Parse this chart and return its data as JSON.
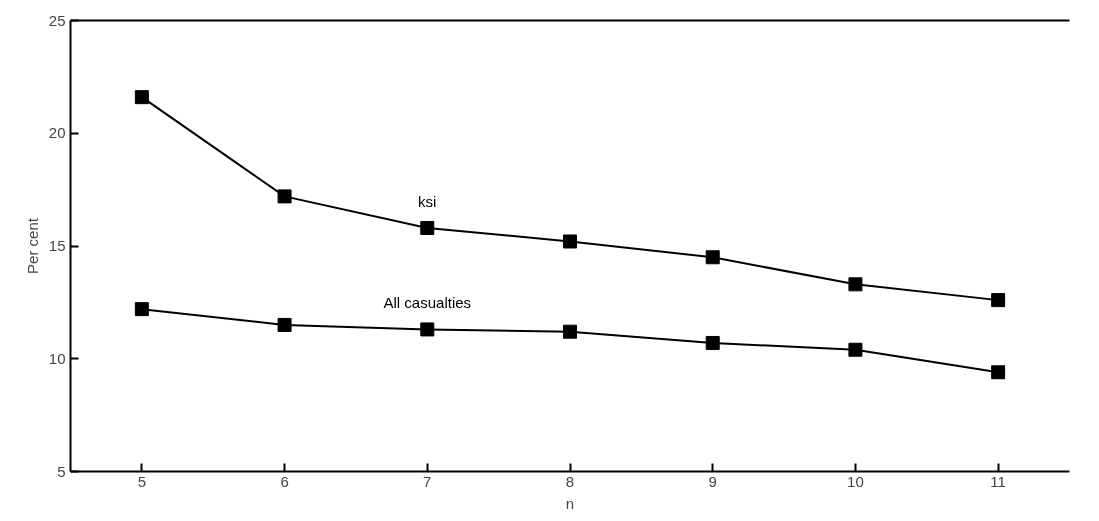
{
  "chart_data": {
    "type": "line",
    "xlabel": "n",
    "ylabel": "Per cent",
    "x": [
      5,
      6,
      7,
      8,
      9,
      10,
      11
    ],
    "series": [
      {
        "name": "ksi",
        "color": "#000000",
        "values": [
          21.6,
          17.2,
          15.8,
          15.2,
          14.5,
          13.3,
          12.6
        ]
      },
      {
        "name": "All casualties",
        "color": "#000000",
        "values": [
          12.2,
          11.5,
          11.3,
          11.2,
          10.7,
          10.4,
          9.4
        ]
      }
    ],
    "xlim": [
      4.5,
      11.5
    ],
    "ylim": [
      5,
      25
    ],
    "xticks": [
      5,
      6,
      7,
      8,
      9,
      10,
      11
    ],
    "yticks": [
      5,
      10,
      15,
      20,
      25
    ],
    "marker": "square",
    "line_style": "solid",
    "grid": false
  }
}
